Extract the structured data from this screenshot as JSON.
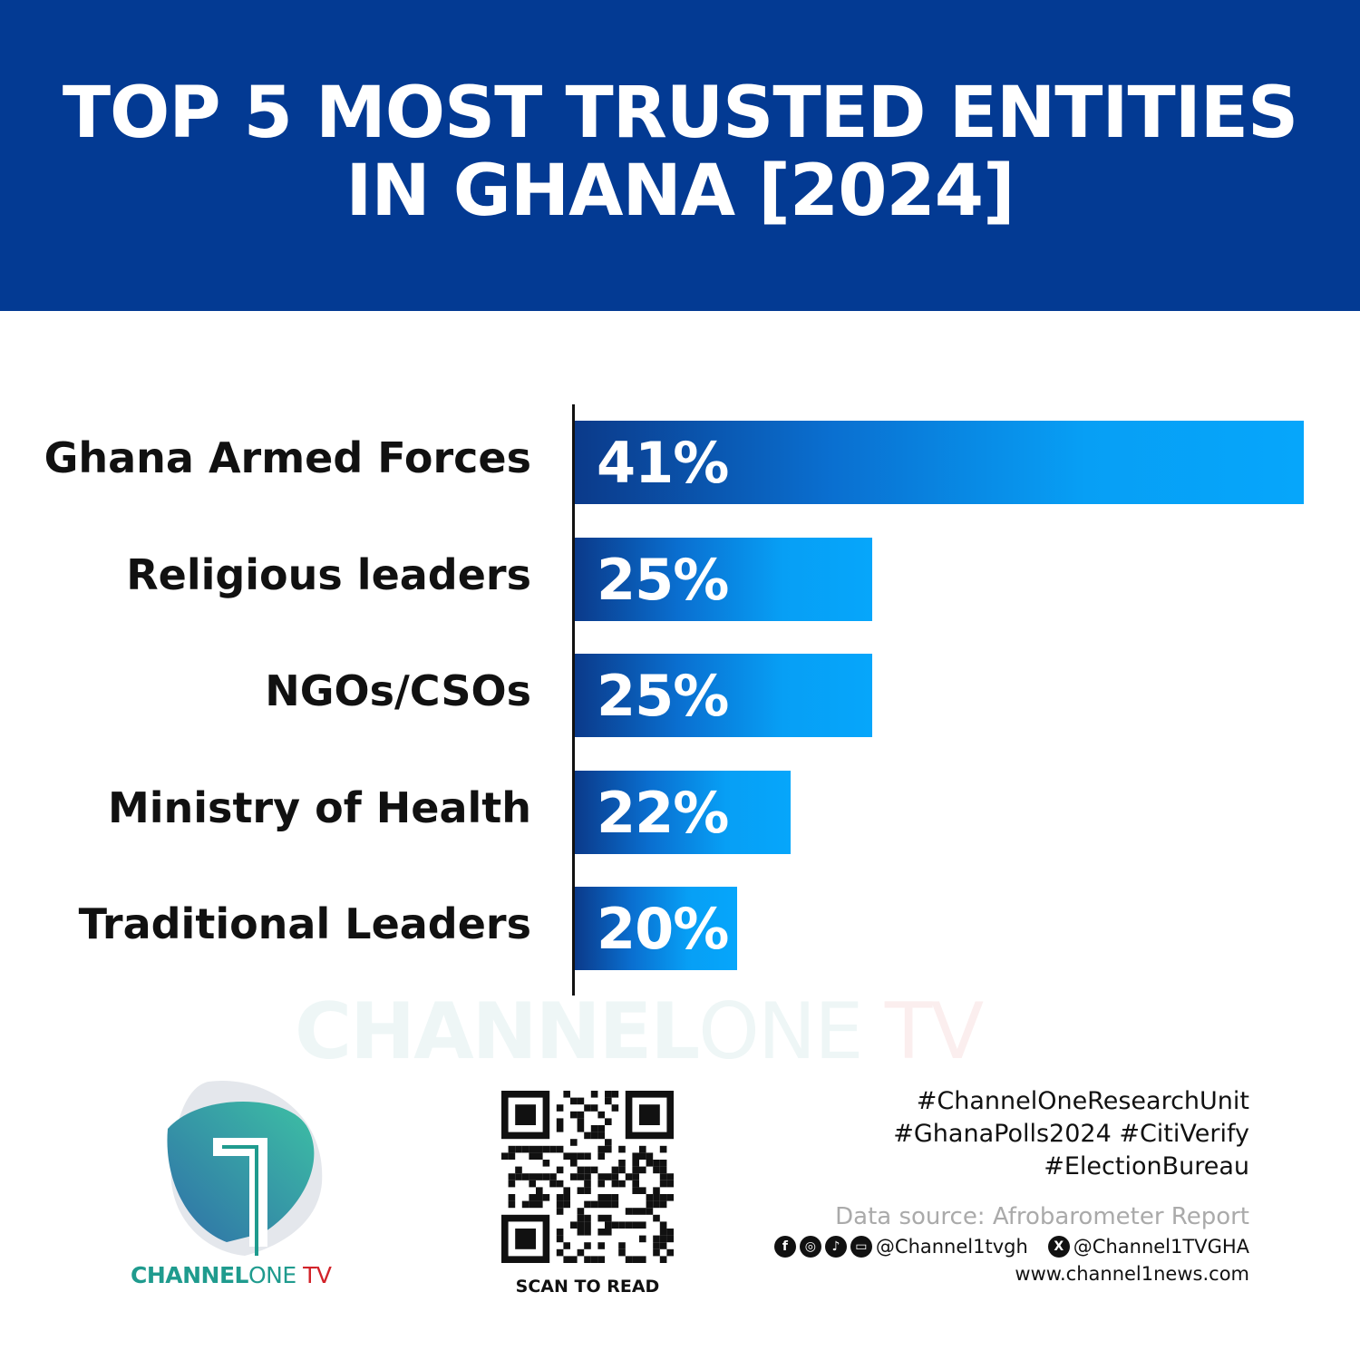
{
  "header": {
    "line1": "TOP 5 MOST TRUSTED ENTITIES",
    "line2": "IN GHANA [2024]"
  },
  "chart_data": {
    "type": "bar",
    "orientation": "horizontal",
    "title": "TOP 5 MOST TRUSTED ENTITIES IN GHANA [2024]",
    "categories": [
      "Ghana Armed Forces",
      "Religious leaders",
      "NGOs/CSOs",
      "Ministry of Health",
      "Traditional Leaders"
    ],
    "values": [
      41,
      25,
      25,
      22,
      20
    ],
    "value_labels": [
      "41%",
      "25%",
      "25%",
      "22%",
      "20%"
    ],
    "unit": "%",
    "grid": false,
    "colors": {
      "bar_start": "#0b3a8a",
      "bar_end": "#06a6fb"
    }
  },
  "watermark": {
    "bold": "CHANNEL",
    "light": "ONE",
    "tv": " TV"
  },
  "logo": {
    "bold": "CHANNEL",
    "light": "ONE",
    "tv": " TV"
  },
  "qr": {
    "caption": "SCAN TO READ"
  },
  "footer": {
    "tags": [
      "#ChannelOneResearchUnit",
      "#GhanaPolls2024 #CitiVerify",
      "#ElectionBureau"
    ],
    "source": "Data source: Afrobarometer Report",
    "handle1": "@Channel1tvgh",
    "handle2": "@Channel1TVGHA",
    "website": "www.channel1news.com"
  },
  "colors": {
    "header": "#033a93",
    "brand_teal": "#1f9b8e",
    "brand_red": "#d2232a"
  }
}
